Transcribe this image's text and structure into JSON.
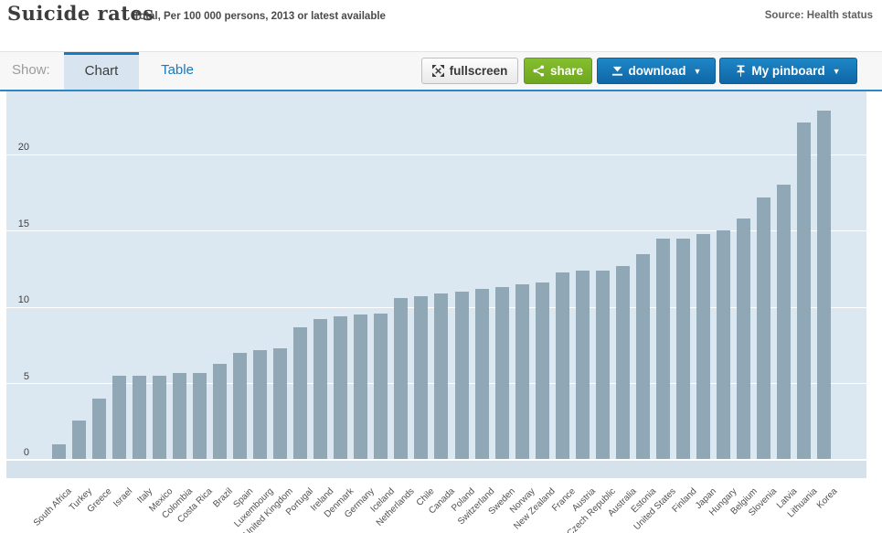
{
  "header": {
    "title": "Suicide rates",
    "subtitle": "Total, Per 100 000 persons, 2013 or latest available",
    "source": "Source: Health status"
  },
  "toolbar": {
    "show_label": "Show:",
    "tabs": [
      {
        "label": "Chart",
        "active": true
      },
      {
        "label": "Table",
        "active": false
      }
    ],
    "buttons": {
      "fullscreen": "fullscreen",
      "share": "share",
      "download": "download",
      "pinboard": "My pinboard"
    },
    "caret": "▼"
  },
  "chart_data": {
    "type": "bar",
    "title": "Suicide rates",
    "subtitle": "Total, Per 100 000 persons, 2013 or latest available",
    "ylabel": "Per 100 000 persons",
    "xlabel": "",
    "categories": [
      "South Africa",
      "Turkey",
      "Greece",
      "Israel",
      "Italy",
      "Mexico",
      "Colombia",
      "Costa Rica",
      "Brazil",
      "Spain",
      "Luxembourg",
      "United Kingdom",
      "Portugal",
      "Ireland",
      "Denmark",
      "Germany",
      "Iceland",
      "Netherlands",
      "Chile",
      "Canada",
      "Poland",
      "Switzerland",
      "Sweden",
      "Norway",
      "New Zealand",
      "France",
      "Austria",
      "Czech Republic",
      "Australia",
      "Estonia",
      "United States",
      "Finland",
      "Japan",
      "Hungary",
      "Belgium",
      "Slovenia",
      "Latvia",
      "Lithuania",
      "Korea"
    ],
    "values": [
      1.0,
      2.6,
      4.0,
      5.5,
      5.5,
      5.5,
      5.7,
      5.7,
      6.3,
      7.0,
      7.2,
      7.3,
      8.7,
      9.2,
      9.4,
      9.5,
      9.6,
      10.6,
      10.7,
      10.9,
      11.0,
      11.2,
      11.3,
      11.5,
      11.6,
      12.3,
      12.4,
      12.4,
      12.7,
      13.5,
      14.5,
      14.5,
      14.8,
      15.0,
      15.8,
      17.2,
      18.0,
      22.1,
      22.9
    ],
    "yticks": [
      0,
      5,
      10,
      15,
      20
    ],
    "ylim": [
      0,
      24.1
    ],
    "grid": true,
    "legend": "none",
    "bar_color": "#90a7b6",
    "plot_bg": "#dce8f1",
    "grid_color": "#ffffff"
  }
}
